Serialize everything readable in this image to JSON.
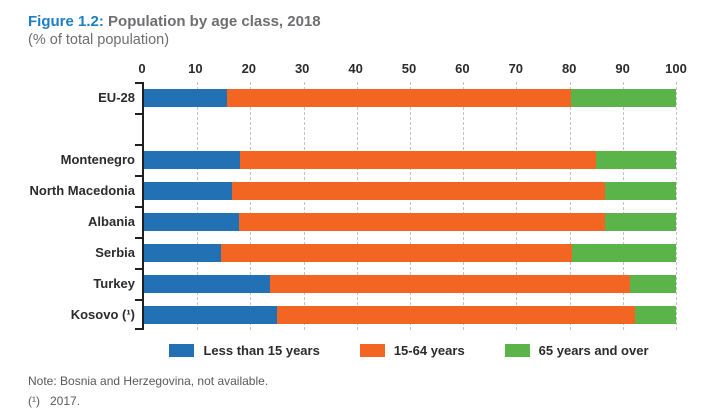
{
  "header": {
    "figure_label": "Figure 1.2:",
    "title": " Population by age class, 2018",
    "subtitle": "(% of total population)"
  },
  "footer": {
    "note": "Note: Bosnia and Herzegovina, not available.",
    "footnote_marker": "(¹)",
    "footnote_text": "2017."
  },
  "chart_data": {
    "type": "bar",
    "orientation": "horizontal",
    "stacked": true,
    "title": "Figure 1.2: Population by age class, 2018",
    "subtitle": "(% of total population)",
    "xlim": [
      0,
      100
    ],
    "x_ticks": [
      0,
      10,
      20,
      30,
      40,
      50,
      60,
      70,
      80,
      90,
      100
    ],
    "grid": "vertical-dashed",
    "legend_position": "bottom",
    "categories": [
      "EU-28",
      "",
      "Montenegro",
      "North Macedonia",
      "Albania",
      "Serbia",
      "Turkey",
      "Kosovo (¹)"
    ],
    "series": [
      {
        "name": "Less than 15 years",
        "color": "#2271b5",
        "values": [
          15.6,
          null,
          18.0,
          16.5,
          17.8,
          14.4,
          23.6,
          25.0
        ]
      },
      {
        "name": "15-64 years",
        "color": "#f26522",
        "values": [
          64.7,
          null,
          67.0,
          70.1,
          68.9,
          66.0,
          67.7,
          67.2
        ]
      },
      {
        "name": "65 years and over",
        "color": "#5bb449",
        "values": [
          19.7,
          null,
          15.0,
          13.4,
          13.3,
          19.6,
          8.7,
          7.8
        ]
      }
    ],
    "axis_color": "#231f20",
    "gridline_color": "#c3c3c3"
  }
}
